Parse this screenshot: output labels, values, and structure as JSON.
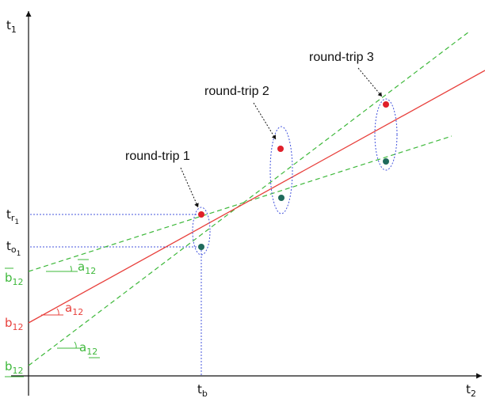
{
  "axes": {
    "y_label": "t",
    "y_sub": "1",
    "x_label": "t",
    "x_sub": "2"
  },
  "ticks": {
    "tr1": {
      "main": "t",
      "sub": "r",
      "subsub": "1"
    },
    "to1": {
      "main": "t",
      "sub": "o",
      "subsub": "1"
    },
    "tb": {
      "main": "t",
      "sub": "b"
    }
  },
  "lines": {
    "upper_green": {
      "main": "b",
      "sub": "12",
      "angle_main": "a",
      "angle_sub": "12"
    },
    "red": {
      "main": "b",
      "sub": "12",
      "angle_main": "a",
      "angle_sub": "12"
    },
    "lower_green": {
      "main": "b",
      "sub": "12",
      "angle_main": "a",
      "angle_sub": "12"
    }
  },
  "round_trips": [
    {
      "label": "round-trip 1"
    },
    {
      "label": "round-trip 2"
    },
    {
      "label": "round-trip 3"
    }
  ],
  "colors": {
    "red": "#e8403c",
    "green": "#3db83a",
    "blue_dotted": "#4455dd",
    "dot_red": "#e0202a",
    "dot_teal": "#1f6a5c",
    "axis": "#111111"
  }
}
